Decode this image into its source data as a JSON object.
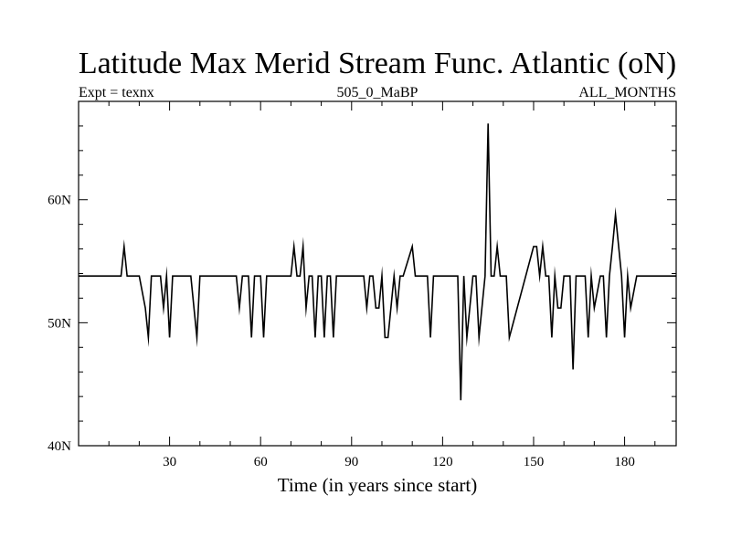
{
  "chart_data": {
    "type": "line",
    "title": "Latitude Max Merid Stream Func. Atlantic (oN)",
    "subtitle_left": "Expt = texnx",
    "subtitle_center": "505_0_MaBP",
    "subtitle_right": "ALL_MONTHS",
    "xlabel": "Time (in years since start)",
    "ylabel": "",
    "xlim": [
      0,
      197
    ],
    "ylim": [
      40,
      68
    ],
    "x_ticks": [
      30,
      60,
      90,
      120,
      150,
      180
    ],
    "x_tick_labels": [
      "30",
      "60",
      "90",
      "120",
      "150",
      "180"
    ],
    "y_ticks": [
      40,
      50,
      60
    ],
    "y_tick_labels": [
      "40N",
      "50N",
      "60N"
    ],
    "x_minor_step": 10,
    "y_minor_step": 2,
    "series": [
      {
        "name": "Latitude Max Merid Stream Func. Atlantic",
        "color": "#000000",
        "x": [
          0,
          14,
          15,
          16,
          20,
          22,
          23,
          24,
          27,
          28,
          29,
          30,
          31,
          37,
          39,
          40,
          52,
          53,
          54,
          56,
          57,
          58,
          60,
          61,
          62,
          63,
          70,
          71,
          72,
          73,
          74,
          75,
          76,
          77,
          78,
          79,
          80,
          81,
          82,
          83,
          84,
          85,
          86,
          87,
          88,
          94,
          95,
          96,
          97,
          98,
          99,
          100,
          101,
          102,
          104,
          105,
          106,
          107,
          110,
          111,
          112,
          115,
          116,
          117,
          125,
          126,
          127,
          128,
          130,
          131,
          132,
          134,
          135,
          136,
          137,
          138,
          139,
          140,
          141,
          142,
          150,
          151,
          152,
          153,
          154,
          155,
          156,
          157,
          158,
          159,
          160,
          162,
          163,
          164,
          166,
          167,
          168,
          169,
          170,
          172,
          173,
          174,
          175,
          176,
          177,
          179,
          180,
          181,
          182,
          184,
          185,
          186,
          188,
          190,
          191,
          192,
          193,
          194,
          195,
          197
        ],
        "values": [
          53.8,
          53.8,
          56.2,
          53.8,
          53.8,
          51.2,
          48.8,
          53.8,
          53.8,
          51.2,
          53.8,
          48.8,
          53.8,
          53.8,
          48.8,
          53.8,
          53.8,
          51.2,
          53.8,
          53.8,
          48.8,
          53.8,
          53.8,
          48.8,
          53.8,
          53.8,
          53.8,
          56.2,
          53.8,
          53.8,
          56.2,
          51.2,
          53.8,
          53.8,
          48.8,
          53.8,
          53.8,
          48.8,
          53.8,
          53.8,
          48.8,
          53.8,
          53.8,
          53.8,
          53.8,
          53.8,
          51.2,
          53.8,
          53.8,
          51.2,
          51.2,
          53.8,
          48.8,
          48.8,
          53.8,
          51.2,
          53.8,
          53.8,
          56.2,
          53.8,
          53.8,
          53.8,
          48.8,
          53.8,
          53.8,
          43.7,
          53.8,
          48.8,
          53.8,
          53.8,
          48.8,
          53.8,
          66.2,
          53.8,
          53.8,
          56.2,
          53.8,
          53.8,
          53.8,
          48.8,
          56.2,
          56.2,
          53.8,
          56.2,
          53.8,
          53.8,
          48.8,
          53.8,
          51.2,
          51.2,
          53.8,
          53.8,
          46.2,
          53.8,
          53.8,
          53.8,
          48.8,
          53.8,
          51.2,
          53.8,
          53.8,
          48.8,
          53.8,
          56.2,
          58.8,
          53.8,
          48.8,
          53.8,
          51.2,
          53.8,
          53.8,
          53.8,
          53.8,
          53.8,
          53.8,
          53.8,
          53.8,
          53.8,
          53.8,
          53.8
        ]
      }
    ]
  }
}
